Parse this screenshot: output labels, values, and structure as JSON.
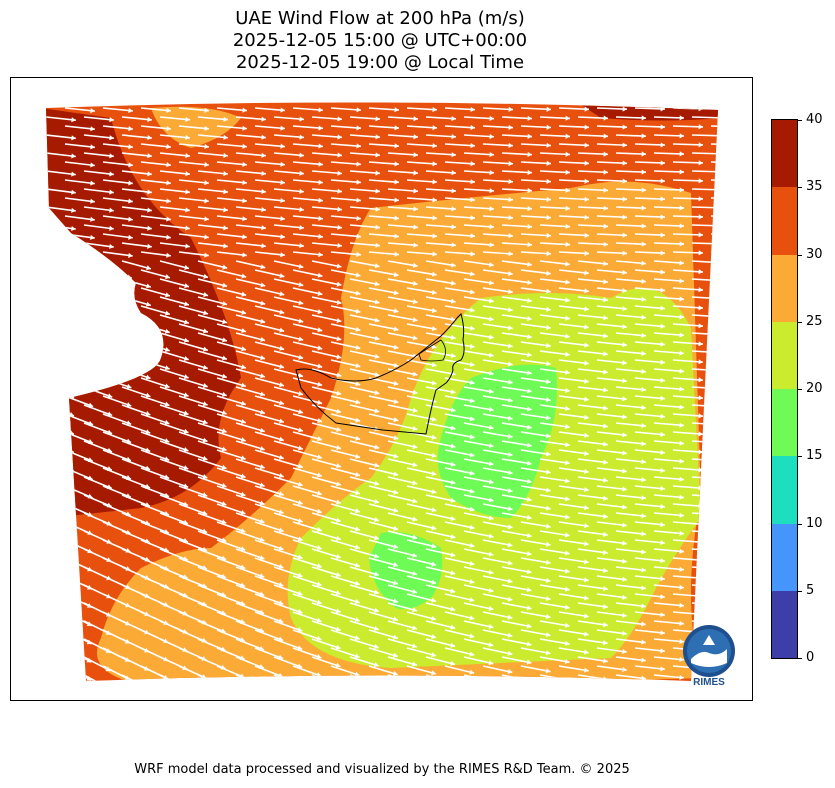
{
  "title": {
    "line1": "UAE Wind Flow at 200 hPa (m/s)",
    "line2": "2025-12-05 15:00 @ UTC+00:00",
    "line3": "2025-12-05 19:00 @ Local Time"
  },
  "colorbar": {
    "ticks": [
      "40",
      "35",
      "30",
      "25",
      "20",
      "15",
      "10",
      "5",
      "0"
    ],
    "segments": [
      {
        "from": 35,
        "to": 40,
        "color": "#a61a00"
      },
      {
        "from": 30,
        "to": 35,
        "color": "#e8500e"
      },
      {
        "from": 25,
        "to": 30,
        "color": "#fbab35"
      },
      {
        "from": 20,
        "to": 25,
        "color": "#cbeb2e"
      },
      {
        "from": 15,
        "to": 20,
        "color": "#6efb55"
      },
      {
        "from": 10,
        "to": 15,
        "color": "#1ddfbf"
      },
      {
        "from": 5,
        "to": 10,
        "color": "#4595fb"
      },
      {
        "from": 0,
        "to": 5,
        "color": "#3e3ea8"
      }
    ]
  },
  "map": {
    "region": "UAE",
    "level": "200 hPa",
    "field_colors": {
      "c35_40": "#a61a00",
      "c30_35": "#e8500e",
      "c25_30": "#fbab35",
      "c20_25": "#cbeb2e",
      "c15_20": "#6efb55"
    },
    "vector_color": "#ffffff",
    "logo_text": "RIMES"
  },
  "footer": "WRF model data processed and visualized by the RIMES R&D Team. © 2025"
}
